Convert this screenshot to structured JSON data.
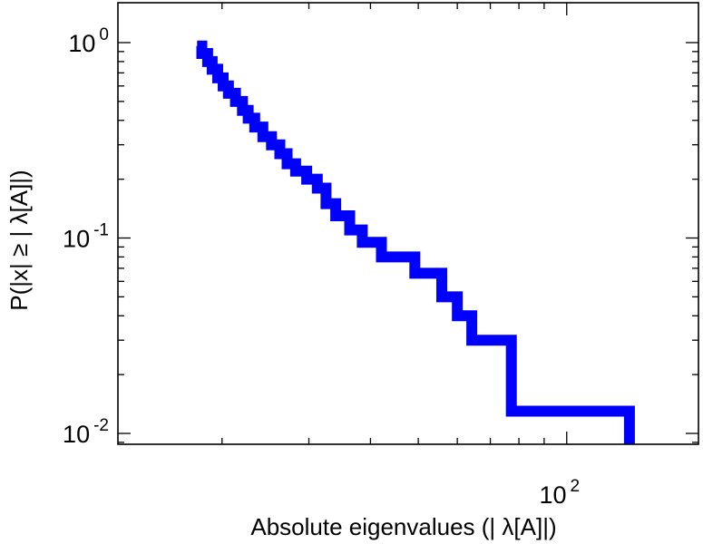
{
  "chart_data": {
    "type": "line",
    "step": true,
    "xscale": "log",
    "yscale": "log",
    "xlim": [
      12.3,
      185
    ],
    "ylim": [
      0.0088,
      1.6
    ],
    "xlabel": "Absolute eigenvalues (|     λ[A]|)",
    "ylabel": "P(|x|  ≥ | λ[A]|)",
    "xtick_labels": [
      {
        "value": 100,
        "label": "10",
        "exp": "2"
      }
    ],
    "ytick_labels": [
      {
        "value": 1,
        "label": "10",
        "exp": "0"
      },
      {
        "value": 0.1,
        "label": "10",
        "exp": "-1"
      },
      {
        "value": 0.01,
        "label": "10",
        "exp": "-2"
      }
    ],
    "grid": false,
    "legend": "none",
    "color": "#0000ff",
    "series": [
      {
        "x": [
          17.8,
          18.2,
          18.7,
          19.1,
          19.6,
          20.1,
          20.6,
          21.3,
          22.0,
          22.6,
          23.3,
          24.2,
          25.2,
          26.2,
          27.1,
          28.2,
          29.7,
          31.2,
          32.5,
          34.0,
          36.3,
          38.5,
          42.1,
          49.2,
          55.8,
          60.0,
          64.2,
          77.2,
          134.0
        ],
        "y": [
          0.96,
          0.88,
          0.8,
          0.73,
          0.66,
          0.6,
          0.55,
          0.5,
          0.45,
          0.41,
          0.37,
          0.33,
          0.3,
          0.27,
          0.24,
          0.22,
          0.2,
          0.18,
          0.15,
          0.13,
          0.11,
          0.095,
          0.08,
          0.066,
          0.05,
          0.04,
          0.03,
          0.013,
          0.0088
        ]
      }
    ]
  }
}
